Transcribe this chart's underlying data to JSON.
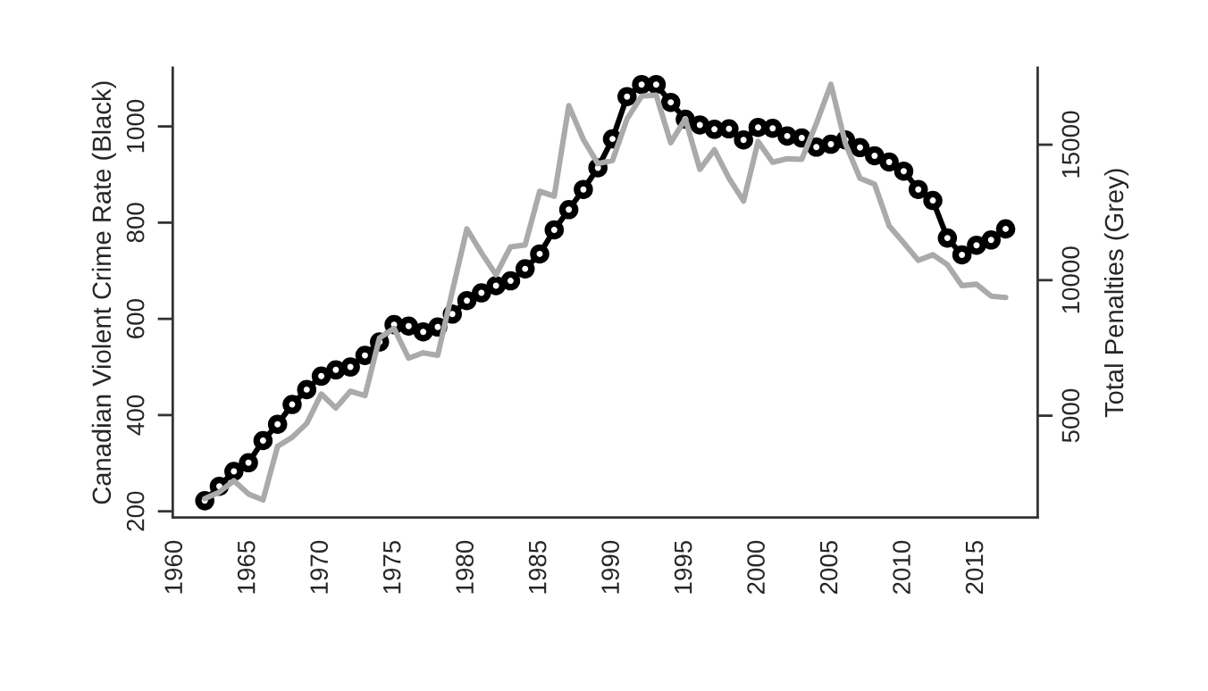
{
  "chart_data": {
    "type": "line",
    "ylabel": "Canadian Violent Crime Rate (Black)",
    "y2label": "Total Penalties (Grey)",
    "x": [
      1962,
      1963,
      1964,
      1965,
      1966,
      1967,
      1968,
      1969,
      1970,
      1971,
      1972,
      1973,
      1974,
      1975,
      1976,
      1977,
      1978,
      1979,
      1980,
      1981,
      1982,
      1983,
      1984,
      1985,
      1986,
      1987,
      1988,
      1989,
      1990,
      1991,
      1992,
      1993,
      1994,
      1995,
      1996,
      1997,
      1998,
      1999,
      2000,
      2001,
      2002,
      2003,
      2004,
      2005,
      2006,
      2007,
      2008,
      2009,
      2010,
      2011,
      2012,
      2013,
      2014,
      2015,
      2016,
      2017
    ],
    "xlim": [
      1959.8,
      2019.2
    ],
    "xticks": [
      1960,
      1965,
      1970,
      1975,
      1980,
      1985,
      1990,
      1995,
      2000,
      2005,
      2010,
      2015
    ],
    "ylim": [
      187,
      1122
    ],
    "yticks": [
      200,
      400,
      600,
      800,
      1000
    ],
    "y2lim": [
      1240,
      17840
    ],
    "y2ticks": [
      5000,
      10000,
      15000
    ],
    "series": [
      {
        "color": "#000000",
        "marker": "circle",
        "values": [
          222,
          252,
          283,
          301,
          347,
          381,
          422,
          453,
          481,
          494,
          500,
          524,
          552,
          588,
          585,
          573,
          583,
          610,
          638,
          654,
          669,
          679,
          704,
          735,
          785,
          827,
          869,
          914,
          974,
          1062,
          1087,
          1087,
          1050,
          1015,
          1003,
          994,
          995,
          972,
          998,
          996,
          980,
          976,
          957,
          963,
          972,
          956,
          939,
          926,
          907,
          869,
          846,
          768,
          733,
          753,
          764,
          787
        ]
      },
      {
        "color": "#aaaaaa",
        "axis": "y2",
        "values": [
          1940,
          2180,
          2600,
          2110,
          1890,
          3870,
          4200,
          4710,
          5800,
          5280,
          5900,
          5740,
          7870,
          8220,
          7120,
          7320,
          7230,
          9590,
          11890,
          11010,
          10200,
          11230,
          11300,
          13280,
          13100,
          16440,
          15190,
          14300,
          14420,
          15950,
          16790,
          16830,
          15070,
          15950,
          14090,
          14810,
          13760,
          12920,
          15120,
          14350,
          14480,
          14460,
          15780,
          17230,
          15030,
          13760,
          13540,
          12000,
          11380,
          10730,
          10940,
          10570,
          9800,
          9850,
          9410,
          9360
        ]
      }
    ]
  }
}
